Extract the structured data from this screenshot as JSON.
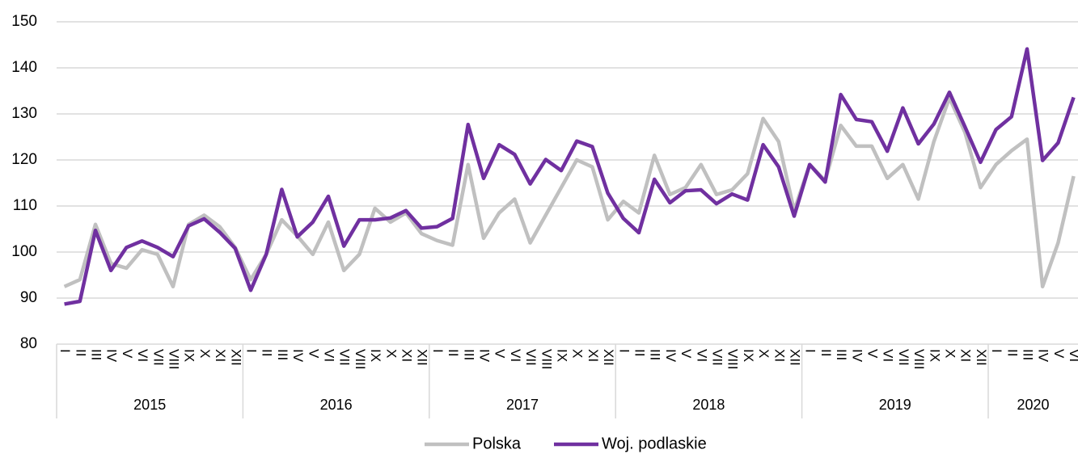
{
  "chart_data": {
    "type": "line",
    "categories": [
      "I",
      "II",
      "III",
      "IV",
      "V",
      "VI",
      "VII",
      "VIII",
      "IX",
      "X",
      "XI",
      "XII",
      "I",
      "II",
      "III",
      "IV",
      "V",
      "VI",
      "VII",
      "VIII",
      "IX",
      "X",
      "XI",
      "XII",
      "I",
      "II",
      "III",
      "IV",
      "V",
      "VI",
      "VII",
      "VIII",
      "IX",
      "X",
      "XI",
      "XII",
      "I",
      "II",
      "III",
      "IV",
      "V",
      "VI",
      "VII",
      "VIII",
      "IX",
      "X",
      "XI",
      "XII",
      "I",
      "II",
      "III",
      "IV",
      "V",
      "VI",
      "VII",
      "VIII",
      "IX",
      "X",
      "XI",
      "XII",
      "I",
      "II",
      "III",
      "IV",
      "V",
      "VI"
    ],
    "year_labels": [
      "2015",
      "2016",
      "2017",
      "2018",
      "2019",
      "2020"
    ],
    "series": [
      {
        "name": "Polska",
        "color": "#c0c0c0",
        "values": [
          92.5,
          94,
          106,
          97.5,
          96.5,
          100.5,
          99.5,
          92.5,
          106,
          108,
          105.5,
          101,
          94,
          99.5,
          107,
          103.5,
          99.5,
          106.5,
          96,
          99.5,
          109.5,
          106.5,
          108.5,
          104,
          102.5,
          101.5,
          119,
          103,
          108.5,
          111.5,
          102,
          108,
          114,
          120,
          118.5,
          107,
          111,
          108.5,
          121,
          112.5,
          114,
          119,
          112.5,
          113.5,
          117,
          129,
          124,
          109,
          119,
          115.5,
          127.5,
          123,
          123,
          116,
          119,
          111.5,
          124,
          133.5,
          126,
          114,
          119,
          122,
          124.5,
          92.5,
          102,
          116.5
        ]
      },
      {
        "name": "Woj. podlaskie",
        "color": "#7030a0",
        "values": [
          88.7,
          89.3,
          104.7,
          96,
          101,
          102.4,
          101,
          99,
          105.7,
          107.2,
          104.3,
          100.8,
          91.7,
          99.5,
          113.6,
          103.3,
          106.5,
          112.1,
          101.3,
          107,
          107,
          107.4,
          109,
          105.2,
          105.5,
          107.3,
          127.7,
          116,
          123.3,
          121.2,
          114.8,
          120.1,
          117.7,
          124.1,
          122.9,
          112.8,
          107.3,
          104.2,
          115.8,
          110.7,
          113.3,
          113.5,
          110.5,
          112.6,
          111.3,
          123.3,
          118.5,
          107.8,
          119,
          115.2,
          134.2,
          128.8,
          128.3,
          121.9,
          131.3,
          123.5,
          127.8,
          134.7,
          127.2,
          119.5,
          126.6,
          129.4,
          144.1,
          119.9,
          123.7,
          133.6
        ]
      }
    ],
    "ylim": [
      80,
      150
    ],
    "yticks": [
      80,
      90,
      100,
      110,
      120,
      130,
      140,
      150
    ],
    "grid": true,
    "legend": "bottom"
  }
}
